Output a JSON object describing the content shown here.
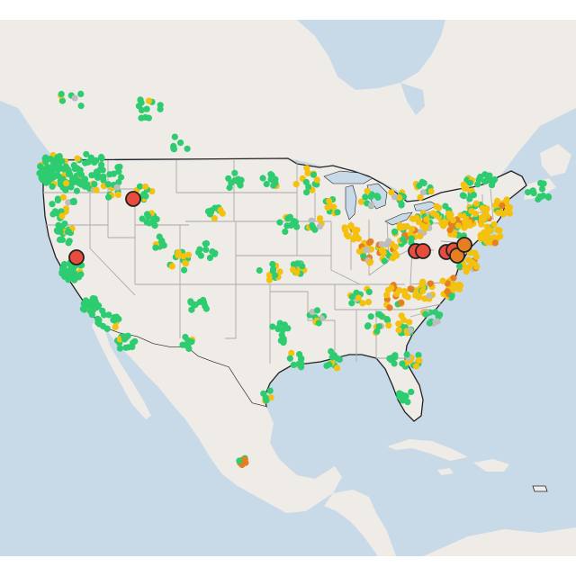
{
  "colors": {
    "ocean": "#c8d9e8",
    "land": "#efebe7",
    "state_border": "#a9a9a9",
    "country_border": "#222222",
    "lake": "#c8d9e8",
    "good": "#2ecc71",
    "moderate": "#f4c10f",
    "unhealthy_sensitive": "#e67e22",
    "unhealthy": "#e74c3c",
    "no_data": "#bdbdbd"
  },
  "legend": []
}
